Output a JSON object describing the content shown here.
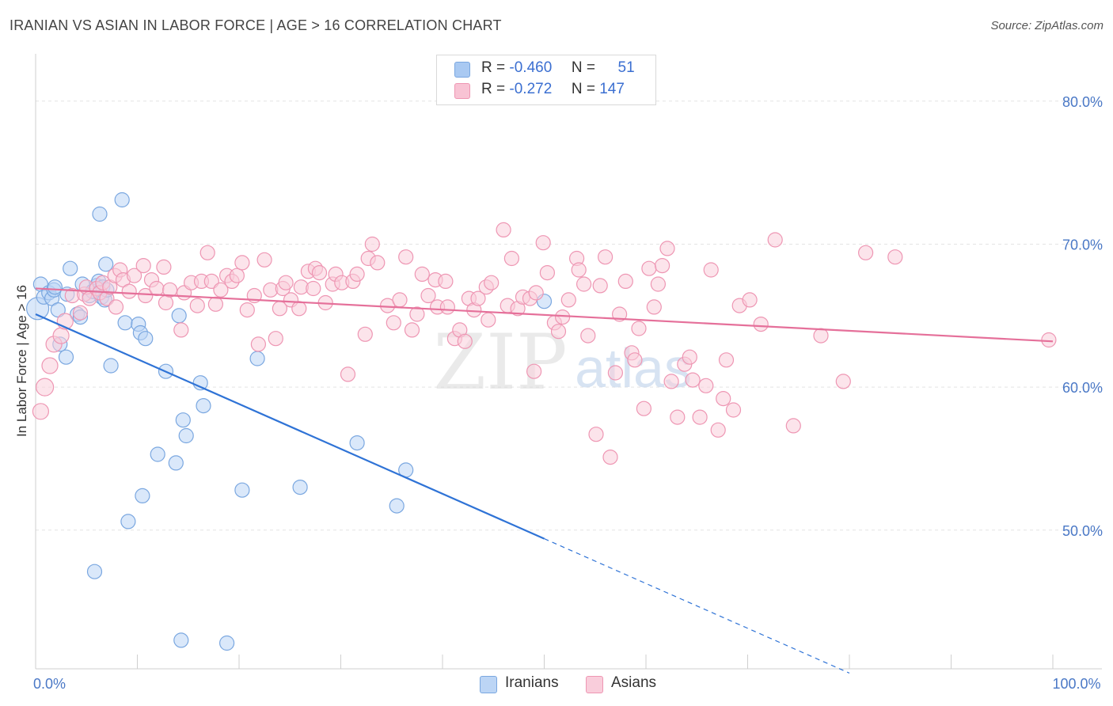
{
  "title": "IRANIAN VS ASIAN IN LABOR FORCE | AGE > 16 CORRELATION CHART",
  "source": "Source: ZipAtlas.com",
  "watermark": {
    "zip": "ZIP",
    "atlas": "atlas"
  },
  "legend": {
    "series": [
      {
        "r_label": "R =",
        "r_value": "-0.460",
        "n_label": "N =",
        "n_value": "51",
        "color": "#a9c9f2",
        "border": "#7aa7e0"
      },
      {
        "r_label": "R =",
        "r_value": "-0.272",
        "n_label": "N =",
        "n_value": "147",
        "color": "#f8c3d4",
        "border": "#ee96b3"
      }
    ]
  },
  "bottom_legend": [
    {
      "label": "Iranians",
      "color": "#bcd5f5",
      "border": "#7aa7e0"
    },
    {
      "label": "Asians",
      "color": "#f9cddb",
      "border": "#ee96b3"
    }
  ],
  "chart_data": {
    "type": "scatter",
    "title": "IRANIAN VS ASIAN IN LABOR FORCE | AGE > 16 CORRELATION CHART",
    "xlabel": "",
    "ylabel": "In Labor Force | Age > 16",
    "xlim": [
      0,
      100
    ],
    "ylim": [
      40.3,
      83.2
    ],
    "x_tick_labels": [
      {
        "value": 0,
        "label": "0.0%"
      },
      {
        "value": 100,
        "label": "100.0%"
      }
    ],
    "y_tick_labels": [
      {
        "value": 50,
        "label": "50.0%"
      },
      {
        "value": 60,
        "label": "60.0%"
      },
      {
        "value": 70,
        "label": "70.0%"
      },
      {
        "value": 80,
        "label": "80.0%"
      }
    ],
    "x_minor_ticks": [
      10,
      20,
      30,
      40,
      50,
      60,
      70,
      80,
      90,
      100
    ],
    "grid": true,
    "series": [
      {
        "name": "Iranians",
        "color": "#7aa7e0",
        "fill": "#bcd5f5",
        "trend": {
          "x1": 0,
          "y1": 65.1,
          "x2": 50,
          "y2": 49.4,
          "dash_to_x": 80,
          "dash_to_y": 40.0,
          "color": "#2f73d6"
        },
        "points": [
          [
            0.2,
            65.5,
            14
          ],
          [
            0.5,
            67.2,
            9
          ],
          [
            0.8,
            66.3,
            9
          ],
          [
            1.3,
            66.6,
            9
          ],
          [
            1.6,
            66.2,
            9
          ],
          [
            1.8,
            66.8,
            9
          ],
          [
            2.2,
            65.4,
            9
          ],
          [
            2.4,
            63.0,
            9
          ],
          [
            3.0,
            62.1,
            9
          ],
          [
            3.1,
            66.5,
            9
          ],
          [
            3.4,
            68.3,
            9
          ],
          [
            4.1,
            65.1,
            9
          ],
          [
            4.4,
            64.9,
            9
          ],
          [
            4.6,
            67.2,
            9
          ],
          [
            5.3,
            66.4,
            9
          ],
          [
            5.6,
            66.7,
            9
          ],
          [
            5.8,
            47.1,
            9
          ],
          [
            6.0,
            67.1,
            9
          ],
          [
            6.2,
            67.4,
            9
          ],
          [
            6.3,
            72.1,
            9
          ],
          [
            6.5,
            66.3,
            9
          ],
          [
            6.6,
            67.0,
            9
          ],
          [
            6.8,
            66.1,
            9
          ],
          [
            6.9,
            68.6,
            9
          ],
          [
            7.0,
            66.8,
            9
          ],
          [
            7.4,
            61.5,
            9
          ],
          [
            8.5,
            73.1,
            9
          ],
          [
            8.8,
            64.5,
            9
          ],
          [
            9.1,
            50.6,
            9
          ],
          [
            10.1,
            64.4,
            9
          ],
          [
            10.3,
            63.8,
            9
          ],
          [
            10.5,
            52.4,
            9
          ],
          [
            10.8,
            63.4,
            9
          ],
          [
            12.0,
            55.3,
            9
          ],
          [
            12.8,
            61.1,
            9
          ],
          [
            13.8,
            54.7,
            9
          ],
          [
            14.1,
            65.0,
            9
          ],
          [
            14.3,
            42.3,
            9
          ],
          [
            14.5,
            57.7,
            9
          ],
          [
            14.8,
            56.6,
            9
          ],
          [
            16.2,
            60.3,
            9
          ],
          [
            16.5,
            58.7,
            9
          ],
          [
            18.8,
            42.1,
            9
          ],
          [
            20.3,
            52.8,
            9
          ],
          [
            21.8,
            62.0,
            9
          ],
          [
            26.0,
            53.0,
            9
          ],
          [
            31.6,
            56.1,
            9
          ],
          [
            35.5,
            51.7,
            9
          ],
          [
            36.4,
            54.2,
            9
          ],
          [
            50.0,
            66.0,
            9
          ],
          [
            1.9,
            67.0,
            9
          ]
        ]
      },
      {
        "name": "Asians",
        "color": "#ee96b3",
        "fill": "#f9cddb",
        "trend": {
          "x1": 0,
          "y1": 66.9,
          "x2": 100,
          "y2": 63.2,
          "color": "#e5709a"
        },
        "points": [
          [
            0.5,
            58.3,
            10
          ],
          [
            0.9,
            60.0,
            11
          ],
          [
            1.4,
            61.5,
            10
          ],
          [
            1.8,
            63.0,
            10
          ],
          [
            2.5,
            63.6,
            10
          ],
          [
            2.9,
            64.6,
            10
          ],
          [
            3.6,
            66.4,
            9
          ],
          [
            4.4,
            65.2,
            9
          ],
          [
            4.8,
            66.5,
            9
          ],
          [
            5.0,
            67.0,
            9
          ],
          [
            5.3,
            66.2,
            9
          ],
          [
            6.0,
            66.9,
            9
          ],
          [
            6.3,
            66.6,
            9
          ],
          [
            6.6,
            67.3,
            9
          ],
          [
            7.0,
            66.2,
            9
          ],
          [
            7.3,
            67.0,
            9
          ],
          [
            7.8,
            67.8,
            9
          ],
          [
            7.9,
            65.6,
            9
          ],
          [
            8.3,
            68.2,
            9
          ],
          [
            8.6,
            67.5,
            9
          ],
          [
            9.2,
            66.7,
            9
          ],
          [
            9.7,
            67.8,
            9
          ],
          [
            10.6,
            68.5,
            9
          ],
          [
            10.8,
            66.4,
            9
          ],
          [
            11.4,
            67.5,
            9
          ],
          [
            11.9,
            66.9,
            9
          ],
          [
            12.6,
            68.4,
            9
          ],
          [
            12.8,
            65.9,
            9
          ],
          [
            13.2,
            66.8,
            9
          ],
          [
            14.3,
            64.0,
            9
          ],
          [
            14.6,
            66.6,
            9
          ],
          [
            15.3,
            67.3,
            9
          ],
          [
            15.9,
            65.7,
            9
          ],
          [
            16.3,
            67.4,
            9
          ],
          [
            16.9,
            69.4,
            9
          ],
          [
            17.3,
            67.4,
            9
          ],
          [
            17.7,
            65.8,
            9
          ],
          [
            18.2,
            66.8,
            9
          ],
          [
            18.8,
            67.8,
            9
          ],
          [
            19.3,
            67.4,
            9
          ],
          [
            19.8,
            67.8,
            9
          ],
          [
            20.3,
            68.7,
            9
          ],
          [
            20.8,
            65.4,
            9
          ],
          [
            21.5,
            66.4,
            9
          ],
          [
            21.9,
            63.0,
            9
          ],
          [
            22.5,
            68.9,
            9
          ],
          [
            23.1,
            66.8,
            9
          ],
          [
            23.6,
            63.4,
            9
          ],
          [
            24.0,
            65.5,
            9
          ],
          [
            24.3,
            66.9,
            9
          ],
          [
            24.6,
            67.3,
            9
          ],
          [
            25.1,
            66.1,
            9
          ],
          [
            25.9,
            65.5,
            9
          ],
          [
            26.1,
            67.0,
            9
          ],
          [
            26.8,
            68.1,
            9
          ],
          [
            27.3,
            66.9,
            9
          ],
          [
            27.5,
            68.3,
            9
          ],
          [
            27.9,
            68.0,
            9
          ],
          [
            28.5,
            65.9,
            9
          ],
          [
            29.2,
            67.2,
            9
          ],
          [
            29.5,
            67.9,
            9
          ],
          [
            30.1,
            67.3,
            9
          ],
          [
            30.7,
            60.9,
            9
          ],
          [
            31.2,
            67.4,
            9
          ],
          [
            31.6,
            67.9,
            9
          ],
          [
            32.4,
            63.7,
            9
          ],
          [
            32.7,
            69.0,
            9
          ],
          [
            33.1,
            70.0,
            9
          ],
          [
            33.6,
            68.7,
            9
          ],
          [
            34.6,
            65.7,
            9
          ],
          [
            35.2,
            64.5,
            9
          ],
          [
            35.8,
            66.1,
            9
          ],
          [
            36.4,
            69.1,
            9
          ],
          [
            37.0,
            64.0,
            9
          ],
          [
            37.5,
            65.1,
            9
          ],
          [
            38.0,
            67.9,
            9
          ],
          [
            38.6,
            66.4,
            9
          ],
          [
            39.3,
            67.5,
            9
          ],
          [
            39.5,
            65.6,
            9
          ],
          [
            40.3,
            67.4,
            9
          ],
          [
            40.5,
            65.6,
            9
          ],
          [
            41.2,
            63.4,
            9
          ],
          [
            41.7,
            64.0,
            9
          ],
          [
            42.2,
            63.2,
            9
          ],
          [
            42.6,
            66.2,
            9
          ],
          [
            43.1,
            65.4,
            9
          ],
          [
            43.5,
            66.2,
            9
          ],
          [
            44.3,
            67.0,
            9
          ],
          [
            44.5,
            64.7,
            9
          ],
          [
            44.8,
            67.3,
            9
          ],
          [
            46.0,
            71.0,
            9
          ],
          [
            46.4,
            65.7,
            9
          ],
          [
            46.8,
            69.0,
            9
          ],
          [
            47.4,
            65.5,
            9
          ],
          [
            47.9,
            66.3,
            9
          ],
          [
            48.6,
            66.2,
            9
          ],
          [
            49.0,
            61.1,
            9
          ],
          [
            49.2,
            66.6,
            9
          ],
          [
            49.9,
            70.1,
            9
          ],
          [
            50.3,
            68.0,
            9
          ],
          [
            51.0,
            64.5,
            9
          ],
          [
            51.4,
            63.9,
            9
          ],
          [
            51.8,
            64.9,
            9
          ],
          [
            52.4,
            66.1,
            9
          ],
          [
            53.2,
            69.0,
            9
          ],
          [
            53.4,
            68.2,
            9
          ],
          [
            53.9,
            67.2,
            9
          ],
          [
            54.3,
            63.6,
            9
          ],
          [
            55.1,
            56.7,
            9
          ],
          [
            55.5,
            67.1,
            9
          ],
          [
            56.0,
            69.1,
            9
          ],
          [
            56.5,
            55.1,
            9
          ],
          [
            57.0,
            61.0,
            9
          ],
          [
            57.4,
            65.1,
            9
          ],
          [
            58.0,
            67.4,
            9
          ],
          [
            58.6,
            62.4,
            9
          ],
          [
            58.9,
            61.9,
            9
          ],
          [
            59.3,
            64.1,
            9
          ],
          [
            59.8,
            58.5,
            9
          ],
          [
            60.3,
            68.3,
            9
          ],
          [
            60.8,
            65.6,
            9
          ],
          [
            61.2,
            67.2,
            9
          ],
          [
            61.6,
            68.5,
            9
          ],
          [
            62.1,
            69.7,
            9
          ],
          [
            62.5,
            60.4,
            9
          ],
          [
            63.1,
            57.9,
            9
          ],
          [
            63.8,
            61.6,
            9
          ],
          [
            64.3,
            62.1,
            9
          ],
          [
            64.6,
            60.5,
            9
          ],
          [
            65.3,
            57.9,
            9
          ],
          [
            65.9,
            60.1,
            9
          ],
          [
            66.4,
            68.2,
            9
          ],
          [
            67.1,
            57.0,
            9
          ],
          [
            67.6,
            59.2,
            9
          ],
          [
            67.9,
            61.9,
            9
          ],
          [
            68.6,
            58.4,
            9
          ],
          [
            69.2,
            65.7,
            9
          ],
          [
            70.2,
            66.1,
            9
          ],
          [
            71.3,
            64.4,
            9
          ],
          [
            72.7,
            70.3,
            9
          ],
          [
            74.5,
            57.3,
            9
          ],
          [
            77.2,
            63.6,
            9
          ],
          [
            79.4,
            60.4,
            9
          ],
          [
            81.6,
            69.4,
            9
          ],
          [
            84.5,
            69.1,
            9
          ],
          [
            99.6,
            63.3,
            9
          ]
        ]
      }
    ]
  }
}
